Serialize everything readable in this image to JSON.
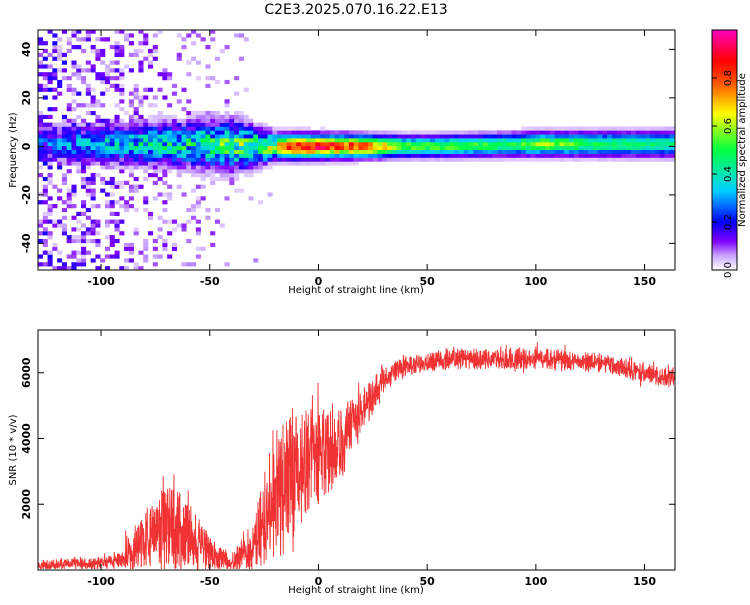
{
  "chart_data": [
    {
      "type": "heatmap",
      "title": "C2E3.2025.070.16.22.E13",
      "xlabel": "Height of straight line (km)",
      "ylabel": "Frequency (Hz)",
      "xlim": [
        -129,
        164
      ],
      "ylim": [
        -51,
        48
      ],
      "x_ticks": [
        -100,
        -50,
        0,
        50,
        100,
        150
      ],
      "y_ticks": [
        -40,
        -20,
        0,
        20,
        40
      ],
      "colorbar": {
        "label": "Normalized spectral amplitude",
        "range": [
          0,
          1
        ],
        "ticks": [
          0.0,
          0.2,
          0.4,
          0.6,
          0.8
        ],
        "tick_labels": [
          "0.0",
          "0.2",
          "0.4",
          "0.6",
          "0.8"
        ],
        "colors": [
          "#ffffff",
          "#c9a4ff",
          "#8000ff",
          "#0000ff",
          "#00d0ff",
          "#00ff40",
          "#ffff00",
          "#ff6000",
          "#ff0000",
          "#ff00c0"
        ]
      },
      "ridge": {
        "center_hz": [
          {
            "x": -129,
            "hz": 1
          },
          {
            "x": -60,
            "hz": 1
          },
          {
            "x": -30,
            "hz": 0
          },
          {
            "x": 0,
            "hz": 0
          },
          {
            "x": 50,
            "hz": 0
          },
          {
            "x": 100,
            "hz": 1
          },
          {
            "x": 164,
            "hz": 1
          }
        ],
        "peak_amplitude": [
          {
            "x": -129,
            "a": 0.25
          },
          {
            "x": -100,
            "a": 0.35
          },
          {
            "x": -60,
            "a": 0.45
          },
          {
            "x": -30,
            "a": 0.55
          },
          {
            "x": -10,
            "a": 0.9
          },
          {
            "x": 20,
            "a": 0.85
          },
          {
            "x": 40,
            "a": 0.55
          },
          {
            "x": 90,
            "a": 0.5
          },
          {
            "x": 100,
            "a": 0.6
          },
          {
            "x": 130,
            "a": 0.5
          },
          {
            "x": 164,
            "a": 0.45
          }
        ],
        "width_hz": [
          {
            "x": -129,
            "w": 4
          },
          {
            "x": -80,
            "w": 5
          },
          {
            "x": -40,
            "w": 6
          },
          {
            "x": -20,
            "w": 3
          },
          {
            "x": 40,
            "w": 2.5
          },
          {
            "x": 164,
            "w": 3
          }
        ],
        "noise_extent_x": [
          -129,
          -20
        ]
      }
    },
    {
      "type": "line",
      "title": "",
      "xlabel": "Height of straight line (km)",
      "ylabel": "SNR (10 * v/v)",
      "xlim": [
        -129,
        164
      ],
      "ylim": [
        0,
        7300
      ],
      "x_ticks": [
        -100,
        -50,
        0,
        50,
        100,
        150
      ],
      "y_ticks": [
        2000,
        4000,
        6000
      ],
      "color": "#f03232",
      "series": [
        {
          "name": "",
          "envelope": [
            {
              "x": -129,
              "mean": 150,
              "spread": 150
            },
            {
              "x": -100,
              "mean": 200,
              "spread": 200
            },
            {
              "x": -90,
              "mean": 300,
              "spread": 250
            },
            {
              "x": -85,
              "mean": 700,
              "spread": 700
            },
            {
              "x": -75,
              "mean": 1100,
              "spread": 1100
            },
            {
              "x": -70,
              "mean": 1300,
              "spread": 1300
            },
            {
              "x": -60,
              "mean": 1100,
              "spread": 1100
            },
            {
              "x": -50,
              "mean": 500,
              "spread": 500
            },
            {
              "x": -40,
              "mean": 200,
              "spread": 200
            },
            {
              "x": -35,
              "mean": 500,
              "spread": 500
            },
            {
              "x": -30,
              "mean": 700,
              "spread": 700
            },
            {
              "x": -25,
              "mean": 1500,
              "spread": 1500
            },
            {
              "x": -20,
              "mean": 2200,
              "spread": 2000
            },
            {
              "x": -15,
              "mean": 2800,
              "spread": 2500
            },
            {
              "x": -10,
              "mean": 3000,
              "spread": 1800
            },
            {
              "x": 0,
              "mean": 3500,
              "spread": 1500
            },
            {
              "x": 10,
              "mean": 3800,
              "spread": 1200
            },
            {
              "x": 20,
              "mean": 4800,
              "spread": 700
            },
            {
              "x": 30,
              "mean": 5800,
              "spread": 400
            },
            {
              "x": 40,
              "mean": 6200,
              "spread": 300
            },
            {
              "x": 60,
              "mean": 6400,
              "spread": 300
            },
            {
              "x": 100,
              "mean": 6450,
              "spread": 350
            },
            {
              "x": 130,
              "mean": 6300,
              "spread": 300
            },
            {
              "x": 150,
              "mean": 6000,
              "spread": 300
            },
            {
              "x": 164,
              "mean": 5800,
              "spread": 300
            }
          ]
        }
      ]
    }
  ]
}
